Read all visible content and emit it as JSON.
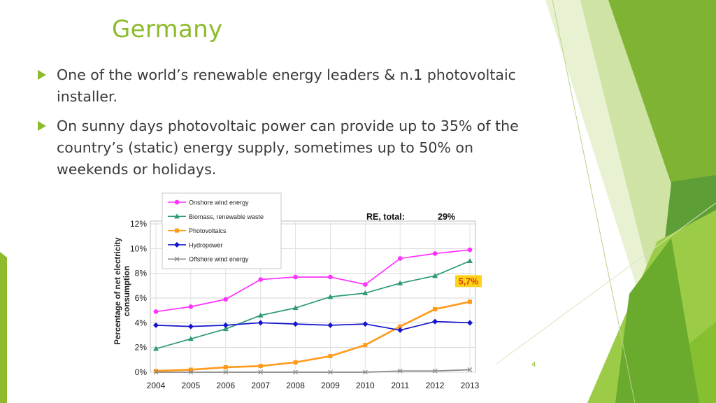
{
  "slide": {
    "title": "Germany",
    "bullets": [
      "One of the world’s renewable energy leaders & n.1 photovoltaic installer.",
      "On sunny days photovoltaic power can provide up to 35% of the country’s (static) energy supply, sometimes up to 50% on weekends or holidays."
    ],
    "page_number": "4"
  },
  "colors": {
    "accent": "#8dbb2c",
    "text": "#3a3a3a"
  },
  "chart_data": {
    "type": "line",
    "title": "",
    "xlabel": "",
    "ylabel": "Percentage of net electricity consumption",
    "x": [
      "2004",
      "2005",
      "2006",
      "2007",
      "2008",
      "2009",
      "2010",
      "2011",
      "2012",
      "2013"
    ],
    "ylim": [
      0,
      12
    ],
    "yticks": [
      "0%",
      "2%",
      "4%",
      "6%",
      "8%",
      "10%",
      "12%"
    ],
    "series": [
      {
        "name": "Onshore wind energy",
        "color": "#ff33ff",
        "marker": "circle",
        "values": [
          4.9,
          5.3,
          5.9,
          7.5,
          7.7,
          7.7,
          7.1,
          9.2,
          9.6,
          9.9
        ]
      },
      {
        "name": "Biomass, renewable waste",
        "color": "#2e9b74",
        "marker": "triangle",
        "values": [
          1.9,
          2.7,
          3.5,
          4.6,
          5.2,
          6.1,
          6.4,
          7.2,
          7.8,
          9.0
        ]
      },
      {
        "name": "Photovoltaics",
        "color": "#ff9a1a",
        "marker": "square",
        "values": [
          0.1,
          0.2,
          0.4,
          0.5,
          0.8,
          1.3,
          2.2,
          3.7,
          5.1,
          5.7
        ]
      },
      {
        "name": "Hydropower",
        "color": "#1414cc",
        "marker": "diamond",
        "values": [
          3.8,
          3.7,
          3.8,
          4.0,
          3.9,
          3.8,
          3.9,
          3.4,
          4.1,
          4.0
        ]
      },
      {
        "name": "Offshore wind energy",
        "color": "#888888",
        "marker": "x",
        "values": [
          0,
          0,
          0,
          0,
          0,
          0,
          0,
          0.1,
          0.1,
          0.2
        ]
      }
    ],
    "annotations": {
      "re_total_label": "RE, total:",
      "re_total_value": "29%",
      "pv_value": "5,7%"
    },
    "legend_position": "top-left",
    "grid": true
  }
}
